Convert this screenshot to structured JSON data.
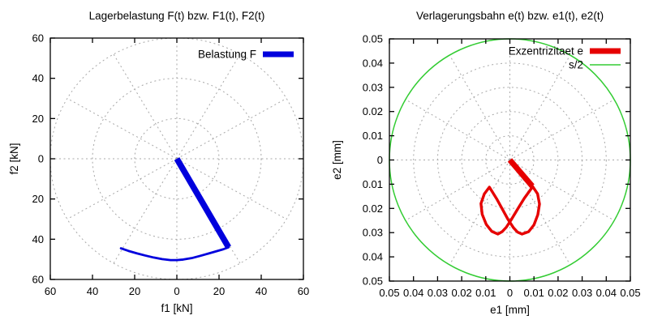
{
  "page": {
    "background": "#ffffff",
    "text_color": "#000000",
    "grid_color": "#a8a8a8",
    "box_color": "#000000"
  },
  "chart_data": [
    {
      "type": "line",
      "title": "Lagerbelastung F(t) bzw. F1(t), F2(t)",
      "xlabel": "f1 [kN]",
      "ylabel": "f2 [kN]",
      "xlim": [
        -60,
        60
      ],
      "ylim": [
        -60,
        60
      ],
      "xticks": [
        -60,
        -40,
        -20,
        0,
        20,
        40,
        60
      ],
      "yticks": [
        60,
        40,
        20,
        0,
        -20,
        -40,
        -60
      ],
      "xtick_labels": [
        "60",
        "40",
        "20",
        "0",
        "20",
        "40",
        "60"
      ],
      "ytick_labels": [
        "60",
        "40",
        "20",
        "0",
        "20",
        "40",
        "60"
      ],
      "grid": {
        "style": "polar",
        "circles": [
          20,
          40,
          60
        ],
        "spoke_step_deg": 30,
        "color": "#a8a8a8",
        "dash": "2,3.5"
      },
      "legend": {
        "position": "top-right",
        "entries": [
          {
            "label": "Belastung F",
            "color": "#0000dd",
            "linewidth": 7
          }
        ]
      },
      "series": [
        {
          "name": "load-vector",
          "kind": "vector",
          "color": "#0000dd",
          "linewidth": 7.5,
          "points": [
            [
              0,
              0
            ],
            [
              24.5,
              -44
            ]
          ]
        },
        {
          "name": "load-path",
          "kind": "path",
          "color": "#0000dd",
          "linewidth": 2.8,
          "points": [
            [
              -26.5,
              -44.5
            ],
            [
              -23,
              -45.8
            ],
            [
              -19,
              -47.0
            ],
            [
              -15,
              -48.1
            ],
            [
              -11,
              -49.1
            ],
            [
              -7,
              -49.9
            ],
            [
              -3,
              -50.4
            ],
            [
              0,
              -50.4
            ],
            [
              3,
              -50.1
            ],
            [
              7,
              -49.4
            ],
            [
              11,
              -48.3
            ],
            [
              15,
              -47.1
            ],
            [
              19,
              -45.9
            ],
            [
              22,
              -45.0
            ],
            [
              24.5,
              -44.0
            ]
          ]
        }
      ]
    },
    {
      "type": "line",
      "title": "Verlagerungsbahn e(t) bzw. e1(t), e2(t)",
      "xlabel": "e1 [mm]",
      "ylabel": "e2 [mm]",
      "xlim": [
        -0.05,
        0.05
      ],
      "ylim": [
        -0.05,
        0.05
      ],
      "xticks": [
        -0.05,
        -0.04,
        -0.03,
        -0.02,
        -0.01,
        0,
        0.01,
        0.02,
        0.03,
        0.04,
        0.05
      ],
      "yticks": [
        0.05,
        0.04,
        0.03,
        0.02,
        0.01,
        0,
        -0.01,
        -0.02,
        -0.03,
        -0.04,
        -0.05
      ],
      "xtick_labels": [
        "0.05",
        "0.04",
        "0.03",
        "0.02",
        "0.01",
        "0",
        "0.01",
        "0.02",
        "0.03",
        "0.04",
        "0.05"
      ],
      "ytick_labels": [
        "0.05",
        "0.04",
        "0.03",
        "0.02",
        "0.01",
        "0",
        "0.01",
        "0.02",
        "0.03",
        "0.04",
        "0.05"
      ],
      "grid": {
        "style": "polar",
        "circles": [
          0.01,
          0.02,
          0.03,
          0.04
        ],
        "spoke_step_deg": 30,
        "color": "#a8a8a8",
        "dash": "2,3.5"
      },
      "legend": {
        "position": "top-right",
        "entries": [
          {
            "label": "Exzentrizitaet e",
            "color": "#e60000",
            "linewidth": 7
          },
          {
            "label": "s/2",
            "color": "#33cc33",
            "linewidth": 1.5
          }
        ]
      },
      "series": [
        {
          "name": "clearance-circle",
          "kind": "circle",
          "radius": 0.05,
          "color": "#33cc33",
          "linewidth": 1.5
        },
        {
          "name": "eccentricity-vector",
          "kind": "vector",
          "color": "#e60000",
          "linewidth": 7,
          "points": [
            [
              0,
              0
            ],
            [
              0.0093,
              -0.0108
            ]
          ]
        },
        {
          "name": "orbit-path",
          "kind": "path",
          "color": "#e60000",
          "linewidth": 3.4,
          "points": [
            [
              0.0095,
              -0.011
            ],
            [
              0.0115,
              -0.014
            ],
            [
              0.0123,
              -0.0182
            ],
            [
              0.0116,
              -0.0226
            ],
            [
              0.01,
              -0.0268
            ],
            [
              0.0078,
              -0.0296
            ],
            [
              0.005,
              -0.0306
            ],
            [
              0.0032,
              -0.0298
            ],
            [
              0.0015,
              -0.028
            ],
            [
              -0.0008,
              -0.0245
            ],
            [
              -0.003,
              -0.0205
            ],
            [
              -0.0055,
              -0.016
            ],
            [
              -0.0085,
              -0.0112
            ],
            [
              -0.0106,
              -0.014
            ],
            [
              -0.012,
              -0.018
            ],
            [
              -0.0115,
              -0.0224
            ],
            [
              -0.0098,
              -0.0266
            ],
            [
              -0.0075,
              -0.0295
            ],
            [
              -0.005,
              -0.0306
            ],
            [
              -0.0032,
              -0.0296
            ],
            [
              -0.0015,
              -0.0278
            ],
            [
              0.0008,
              -0.0243
            ],
            [
              0.0032,
              -0.0203
            ],
            [
              0.006,
              -0.0158
            ],
            [
              0.0095,
              -0.011
            ]
          ]
        }
      ]
    }
  ]
}
